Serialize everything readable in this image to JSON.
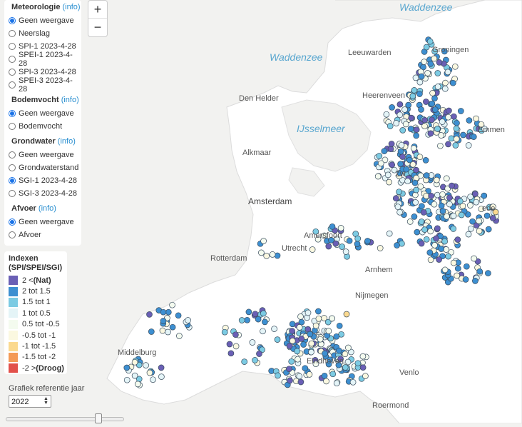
{
  "map": {
    "labels": {
      "wadden_top": "Waddenzee",
      "wadden_left": "Waddenzee",
      "ijsselmeer": "IJsselmeer",
      "leeuwarden": "Leeuwarden",
      "groningen": "Groningen",
      "heerenveen": "Heerenveen",
      "den_helder": "Den Helder",
      "emmen": "Emmen",
      "alkmaar": "Alkmaar",
      "amsterdam": "Amsterdam",
      "amersfoort": "Amersfoort",
      "utrecht": "Utrecht",
      "rotterdam": "Rotterdam",
      "arnhem": "Arnhem",
      "nijmegen": "Nijmegen",
      "middelburg": "Middelburg",
      "eindhoven": "Eindhoven",
      "venlo": "Venlo",
      "roermond": "Roermond",
      "zwolle_partial": "Zw",
      "enschede_partial": "ede"
    },
    "colors": {
      "land": "#ffffff",
      "water": "#f2f2f0",
      "station_stroke": "#3a4d5e",
      "nat": "#6a5fb5",
      "c2_15": "#3d8fd1",
      "c15_1": "#7ccbe3",
      "c1_05": "#e4f4f7",
      "c05_m05": "#f4fbef",
      "cm05_m1": "#fbf8e0",
      "cm1_m15": "#fbd98f",
      "cm15_m2": "#f49a56",
      "droog": "#e2504a"
    }
  },
  "zoom": {
    "in": "+",
    "out": "−"
  },
  "layers": {
    "meteo": {
      "title": "Meteorologie",
      "info": "(info)",
      "options": [
        "Geen weergave",
        "Neerslag",
        "SPI-1 2023-4-28",
        "SPEI-1 2023-4-28",
        "SPI-3 2023-4-28",
        "SPEI-3 2023-4-28"
      ],
      "selected": "Geen weergave"
    },
    "bodemvocht": {
      "title": "Bodemvocht",
      "info": "(info)",
      "options": [
        "Geen weergave",
        "Bodemvocht"
      ],
      "selected": "Geen weergave"
    },
    "grondwater": {
      "title": "Grondwater",
      "info": "(info)",
      "options": [
        "Geen weergave",
        "Grondwaterstand",
        "SGI-1 2023-4-28",
        "SGI-3 2023-4-28"
      ],
      "selected": "SGI-1 2023-4-28"
    },
    "afvoer": {
      "title": "Afvoer",
      "info": "(info)",
      "options": [
        "Geen weergave",
        "Afvoer"
      ],
      "selected": "Geen weergave"
    }
  },
  "legend": {
    "title_line1": "Indexen",
    "title_line2": "(SPI/SPEI/SGI)",
    "items": [
      {
        "label": "2 < ",
        "bold": "(Nat)",
        "color": "#6a5fb5"
      },
      {
        "label": "2 tot 1.5",
        "bold": "",
        "color": "#3d8fd1"
      },
      {
        "label": "1.5 tot 1",
        "bold": "",
        "color": "#7ccbe3"
      },
      {
        "label": "1 tot 0.5",
        "bold": "",
        "color": "#e4f4f7"
      },
      {
        "label": "0.5 tot -0.5",
        "bold": "",
        "color": "#f4fbef"
      },
      {
        "label": "-0.5 tot -1",
        "bold": "",
        "color": "#fbf8e0"
      },
      {
        "label": "-1 tot -1.5",
        "bold": "",
        "color": "#fbd98f"
      },
      {
        "label": "-1.5 tot -2",
        "bold": "",
        "color": "#f49a56"
      },
      {
        "label": "-2 > ",
        "bold": "(Droog)",
        "color": "#e2504a"
      }
    ]
  },
  "reference_year": {
    "label": "Grafiek referentie jaar",
    "value": "2022",
    "slider_value": 0.8
  }
}
